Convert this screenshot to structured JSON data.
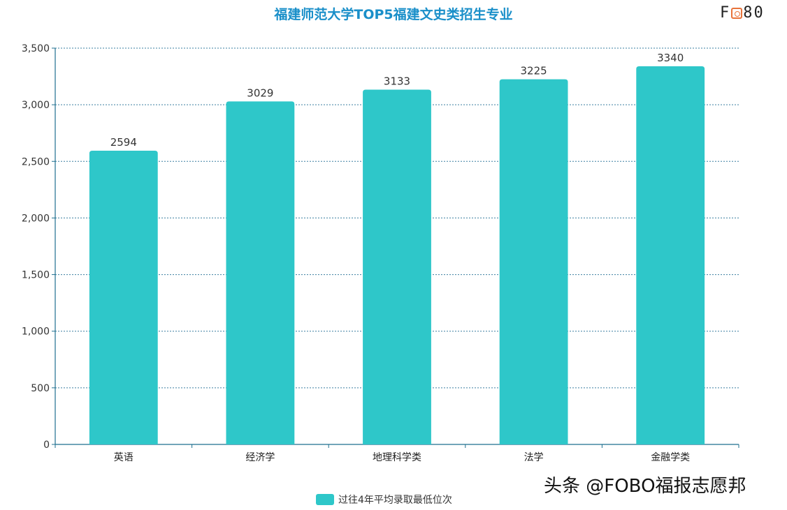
{
  "header": {
    "logo_text_left": "F",
    "logo_text_right": "80"
  },
  "watermark": "头条 @FOBO福报志愿邦",
  "colors": {
    "bar": "#2ec7c9",
    "title": "#1a8fc9",
    "axis": "#1e6f8f",
    "grid": "#3a7fa0"
  },
  "chart_data": {
    "type": "bar",
    "title": "福建师范大学TOP5福建文史类招生专业",
    "categories": [
      "英语",
      "经济学",
      "地理科学类",
      "法学",
      "金融学类"
    ],
    "series": [
      {
        "name": "过往4年平均录取最低位次",
        "values": [
          2594,
          3029,
          3133,
          3225,
          3340
        ]
      }
    ],
    "ylim": [
      0,
      3500
    ],
    "yticks": [
      0,
      500,
      1000,
      1500,
      2000,
      2500,
      3000,
      3500
    ],
    "ytick_labels": [
      "0",
      "500",
      "1,000",
      "1,500",
      "2,000",
      "2,500",
      "3,000",
      "3,500"
    ],
    "xlabel": "",
    "ylabel": "",
    "grid": true,
    "legend_position": "bottom-center"
  }
}
